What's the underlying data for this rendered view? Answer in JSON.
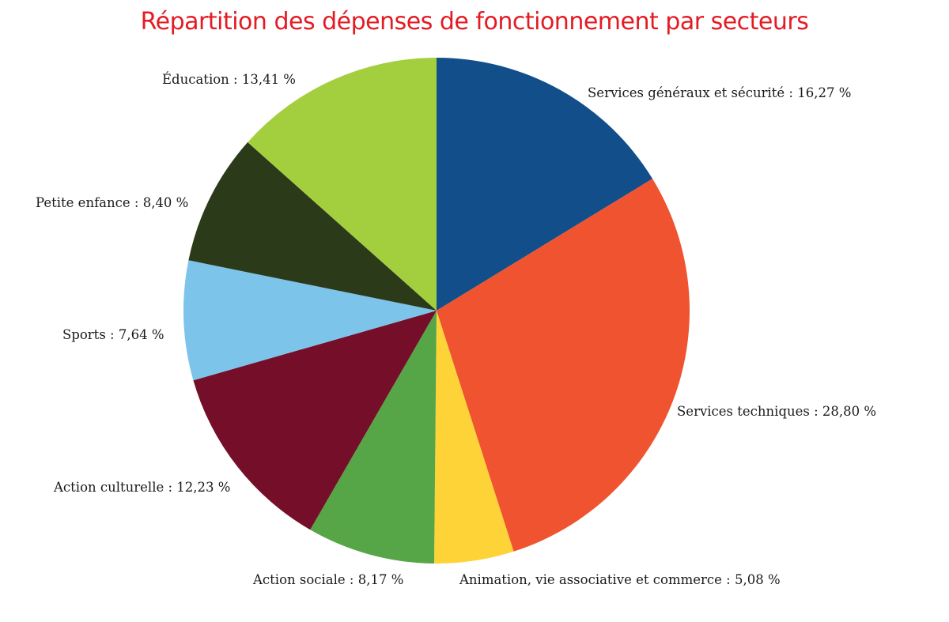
{
  "chart_data": {
    "type": "pie",
    "title": "Répartition des dépenses de fonctionnement par secteurs",
    "slices": [
      {
        "label": "Services généraux et sécurité",
        "value": 16.27,
        "display": "Services généraux et sécurité : 16,27 %",
        "color": "#114e8a"
      },
      {
        "label": "Services techniques",
        "value": 28.8,
        "display": "Services techniques : 28,80 %",
        "color": "#ef5330"
      },
      {
        "label": "Animation, vie associative et commerce",
        "value": 5.08,
        "display": "Animation, vie associative et commerce : 5,08 %",
        "color": "#fdd337"
      },
      {
        "label": "Action sociale",
        "value": 8.17,
        "display": "Action sociale : 8,17 %",
        "color": "#56a546"
      },
      {
        "label": "Action culturelle",
        "value": 12.23,
        "display": "Action culturelle : 12,23 %",
        "color": "#750e29"
      },
      {
        "label": "Sports",
        "value": 7.64,
        "display": "Sports : 7,64 %",
        "color": "#7cc4ea"
      },
      {
        "label": "Petite enfance",
        "value": 8.4,
        "display": "Petite enfance : 8,40 %",
        "color": "#2b3a19"
      },
      {
        "label": "Éducation",
        "value": 13.41,
        "display": "Éducation : 13,41 %",
        "color": "#a3cf3f"
      }
    ],
    "start": "12 o'clock",
    "direction": "clockwise"
  }
}
